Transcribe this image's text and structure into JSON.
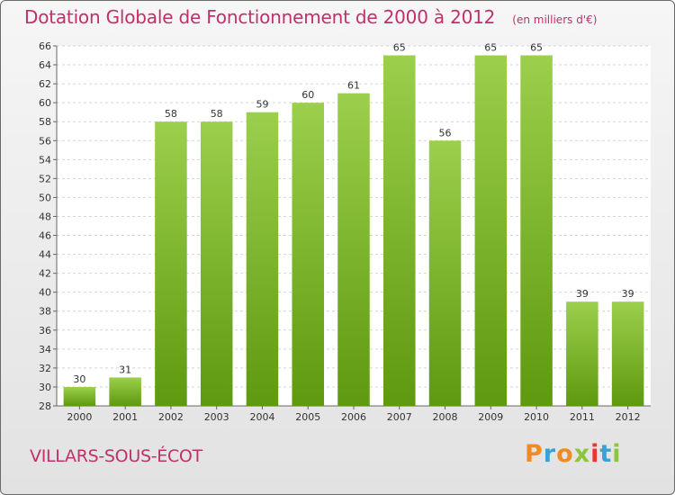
{
  "chart_data": {
    "type": "bar",
    "title": "Dotation Globale de Fonctionnement de 2000 à 2012",
    "unit": "(en milliers d'€)",
    "categories": [
      "2000",
      "2001",
      "2002",
      "2003",
      "2004",
      "2005",
      "2006",
      "2007",
      "2008",
      "2009",
      "2010",
      "2011",
      "2012"
    ],
    "values": [
      30,
      31,
      58,
      58,
      59,
      60,
      61,
      65,
      56,
      65,
      65,
      39,
      39
    ],
    "ylim": [
      28,
      66
    ],
    "ytick_step": 2,
    "grid": true,
    "bar_colors": {
      "top": "#9ccf4c",
      "bottom": "#5e990f"
    }
  },
  "commune": "VILLARS-SOUS-ÉCOT",
  "brand": {
    "letters": [
      "P",
      "r",
      "o",
      "x",
      "i",
      "t",
      "i"
    ],
    "colors": [
      "#f08a24",
      "#3aa0d8",
      "#f08a24",
      "#8cc63f",
      "#e8372c",
      "#3aa0d8",
      "#8cc63f"
    ]
  }
}
